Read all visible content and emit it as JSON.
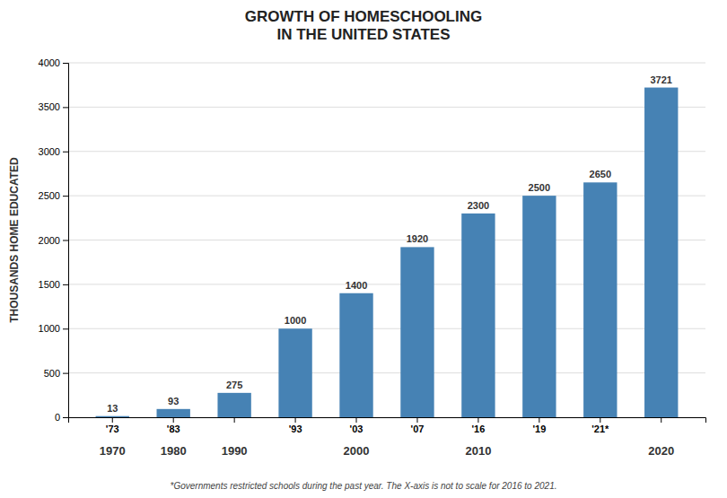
{
  "chart_data": {
    "type": "bar",
    "title": "GROWTH OF HOMESCHOOLING\nIN THE UNITED STATES",
    "y_label": "THOUSANDS HOME EDUCATED",
    "footnote": "*Governments restricted schools during the past year. The X-axis is not to scale for 2016 to 2021.",
    "categories": [
      "'73",
      "'83",
      null,
      "'93",
      "'03",
      "'07",
      "'16",
      "'19",
      "'21*",
      null
    ],
    "values": [
      13,
      93,
      275,
      1000,
      1400,
      1920,
      2300,
      2500,
      2650,
      3721
    ],
    "color": "#4682b4",
    "data_labels": true,
    "annotations": [
      {
        "text": "1970",
        "x": 0
      },
      {
        "text": "1980",
        "x": 1
      },
      {
        "text": "1990",
        "x": 2
      },
      {
        "text": "2000",
        "x": 4
      },
      {
        "text": "2010",
        "x": 6
      },
      {
        "text": "2020",
        "x": 9
      }
    ],
    "ylim": [
      0,
      4000
    ],
    "yticks": [
      0,
      500,
      1000,
      1500,
      2000,
      2500,
      3000,
      3500,
      4000
    ],
    "grid": true
  }
}
